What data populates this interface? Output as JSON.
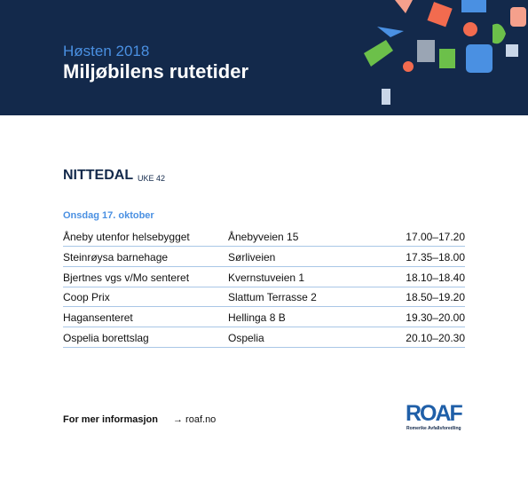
{
  "header": {
    "subtitle": "Høsten 2018",
    "title": "Miljøbilens rutetider"
  },
  "section": {
    "place": "NITTEDAL",
    "week": "UKE 42",
    "date": "Onsdag 17. oktober"
  },
  "table": {
    "rows": [
      [
        "Åneby utenfor helsebygget",
        "Ånebyveien 15",
        "17.00–17.20"
      ],
      [
        "Steinrøysa barnehage",
        "Sørliveien",
        "17.35–18.00"
      ],
      [
        "Bjertnes vgs v/Mo senteret",
        "Kvernstuveien 1",
        "18.10–18.40"
      ],
      [
        "Coop Prix",
        "Slattum Terrasse 2",
        "18.50–19.20"
      ],
      [
        "Hagansenteret",
        "Hellinga 8 B",
        "19.30–20.00"
      ],
      [
        "Ospelia borettslag",
        "Ospelia",
        "20.10–20.30"
      ]
    ]
  },
  "footer": {
    "info": "For mer informasjon",
    "link": "→ roaf.no",
    "logo": "ROAF",
    "logo_sub": "Romerike Avfallsforedling"
  }
}
